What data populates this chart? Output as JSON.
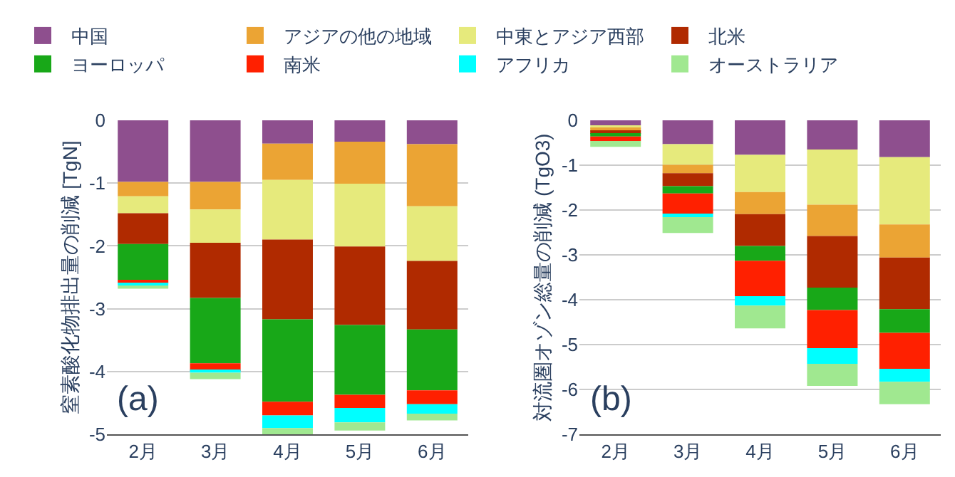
{
  "chart_data": [
    {
      "type": "bar",
      "stacked": true,
      "categories": [
        "2月",
        "3月",
        "4月",
        "5月",
        "6月"
      ],
      "ylabel": "窒素酸化物排出量の削減 [TgN]",
      "ylim": [
        -5,
        0
      ],
      "yticks": [
        -5,
        -4,
        -3,
        -2,
        -1,
        0
      ],
      "grid": "y",
      "legend": "top",
      "annotations": [
        "(a)"
      ],
      "series": [
        {
          "name": "中国",
          "color": "#8e4f8e",
          "values": [
            -0.98,
            -0.98,
            -0.37,
            -0.34,
            -0.38
          ]
        },
        {
          "name": "アジアの他の地域",
          "color": "#eba434",
          "values": [
            -0.23,
            -0.44,
            -0.58,
            -0.67,
            -0.99
          ]
        },
        {
          "name": "中東とアジア西部",
          "color": "#e6ea7c",
          "values": [
            -0.27,
            -0.53,
            -0.95,
            -1.0,
            -0.87
          ]
        },
        {
          "name": "北米",
          "color": "#b02a00",
          "values": [
            -0.49,
            -0.88,
            -1.27,
            -1.25,
            -1.09
          ]
        },
        {
          "name": "ヨーロッパ",
          "color": "#18a818",
          "values": [
            -0.57,
            -1.04,
            -1.31,
            -1.11,
            -0.97
          ]
        },
        {
          "name": "南米",
          "color": "#ff2000",
          "values": [
            -0.05,
            -0.12,
            -0.22,
            -0.21,
            -0.22
          ]
        },
        {
          "name": "アフリカ",
          "color": "#00ffff",
          "values": [
            -0.04,
            -0.03,
            -0.2,
            -0.23,
            -0.15
          ]
        },
        {
          "name": "オーストラリア",
          "color": "#a0e890",
          "values": [
            -0.05,
            -0.1,
            -0.1,
            -0.13,
            -0.11
          ]
        }
      ]
    },
    {
      "type": "bar",
      "stacked": true,
      "categories": [
        "2月",
        "3月",
        "4月",
        "5月",
        "6月"
      ],
      "ylabel": "対流圏オゾン総量の削減 (TgO3)",
      "ylim": [
        -7,
        0
      ],
      "yticks": [
        -7,
        -6,
        -5,
        -4,
        -3,
        -2,
        -1,
        0
      ],
      "grid": "y",
      "annotations": [
        "(b)"
      ],
      "series": [
        {
          "name": "中国",
          "color": "#8e4f8e",
          "values": [
            -0.11,
            -0.53,
            -0.77,
            -0.65,
            -0.82
          ]
        },
        {
          "name": "中東とアジア西部",
          "color": "#e6ea7c",
          "values": [
            -0.08,
            -0.46,
            -0.83,
            -1.23,
            -1.5
          ]
        },
        {
          "name": "アジアの他の地域",
          "color": "#eba434",
          "values": [
            -0.06,
            -0.19,
            -0.49,
            -0.7,
            -0.74
          ]
        },
        {
          "name": "北米",
          "color": "#b02a00",
          "values": [
            -0.05,
            -0.29,
            -0.71,
            -1.15,
            -1.15
          ]
        },
        {
          "name": "ヨーロッパ",
          "color": "#18a818",
          "values": [
            -0.06,
            -0.16,
            -0.33,
            -0.5,
            -0.53
          ]
        },
        {
          "name": "南米",
          "color": "#ff2000",
          "values": [
            -0.1,
            -0.45,
            -0.79,
            -0.85,
            -0.8
          ]
        },
        {
          "name": "アフリカ",
          "color": "#00ffff",
          "values": [
            null,
            -0.08,
            -0.21,
            -0.35,
            -0.29
          ]
        },
        {
          "name": "オーストラリア",
          "color": "#a0e890",
          "values": [
            -0.13,
            -0.35,
            -0.51,
            -0.49,
            -0.5
          ]
        }
      ]
    }
  ]
}
